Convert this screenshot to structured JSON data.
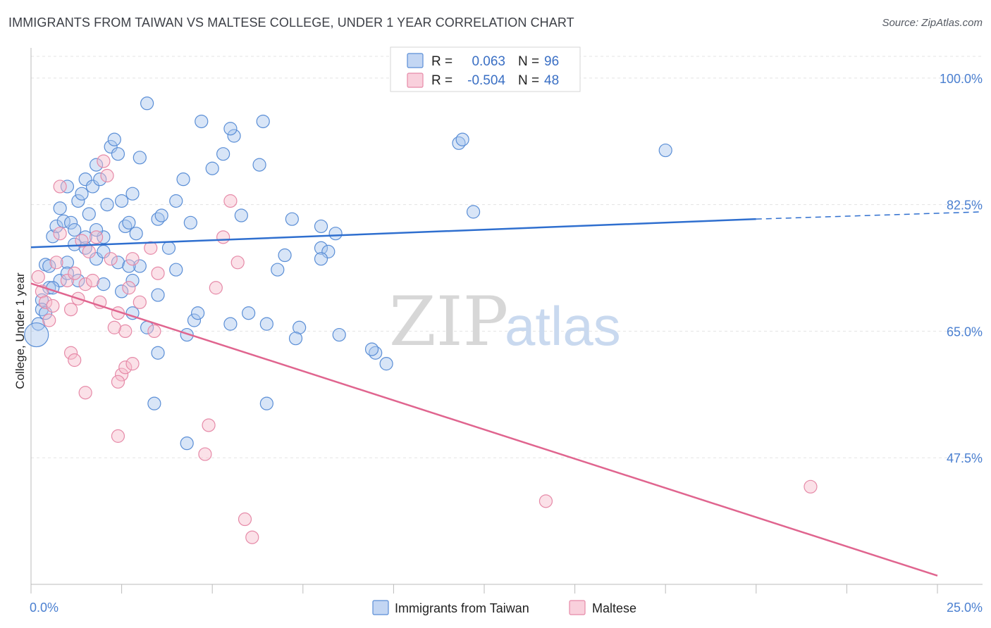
{
  "title": "IMMIGRANTS FROM TAIWAN VS MALTESE COLLEGE, UNDER 1 YEAR CORRELATION CHART",
  "source": "Source: ZipAtlas.com",
  "watermark": {
    "zip": "ZIP",
    "atlas": "atlas"
  },
  "colors": {
    "blue_fill": "#a9c5ee",
    "blue_stroke": "#5a8ed6",
    "blue_line": "#2f6fcf",
    "pink_fill": "#f6bccd",
    "pink_stroke": "#e68aa8",
    "pink_line": "#e0658f",
    "grid": "#e3e3e3",
    "tick_text": "#4a7fd0"
  },
  "legend": {
    "rows": [
      {
        "r_label": "R =",
        "r_value": "0.063",
        "n_label": "N =",
        "n_value": "96",
        "series": "blue"
      },
      {
        "r_label": "R =",
        "r_value": "-0.504",
        "n_label": "N =",
        "n_value": "48",
        "series": "pink"
      }
    ]
  },
  "chart_data": {
    "type": "scatter",
    "title": "IMMIGRANTS FROM TAIWAN VS MALTESE COLLEGE, UNDER 1 YEAR CORRELATION CHART",
    "xlabel": "",
    "ylabel": "College, Under 1 year",
    "xlim": [
      0,
      25
    ],
    "ylim": [
      30,
      103
    ],
    "x_tick_labels": [
      "0.0%",
      "25.0%"
    ],
    "y_ticks": [
      47.5,
      65.0,
      82.5,
      100.0
    ],
    "y_tick_labels": [
      "47.5%",
      "65.0%",
      "82.5%",
      "100.0%"
    ],
    "legend": [
      "Immigrants from Taiwan",
      "Maltese"
    ],
    "series": [
      {
        "name": "Immigrants from Taiwan",
        "color": "blue",
        "R": 0.063,
        "N": 96,
        "trend": {
          "x0": 0,
          "y0": 76.6,
          "x1": 20.0,
          "y1": 80.5,
          "dashed_to_x": 25,
          "dashed_to_y": 81.5
        },
        "points": [
          [
            0.3,
            69.3
          ],
          [
            0.4,
            74.2
          ],
          [
            0.5,
            74.0
          ],
          [
            0.6,
            78.1
          ],
          [
            0.7,
            79.5
          ],
          [
            0.8,
            82.0
          ],
          [
            0.9,
            80.2
          ],
          [
            1.0,
            85.0
          ],
          [
            1.1,
            80.0
          ],
          [
            1.2,
            79.0
          ],
          [
            1.3,
            83.0
          ],
          [
            1.4,
            84.0
          ],
          [
            1.5,
            86.0
          ],
          [
            1.6,
            81.2
          ],
          [
            1.7,
            85.0
          ],
          [
            1.8,
            88.0
          ],
          [
            1.9,
            86.0
          ],
          [
            2.0,
            78.0
          ],
          [
            2.1,
            82.5
          ],
          [
            2.2,
            90.5
          ],
          [
            2.3,
            91.5
          ],
          [
            2.4,
            89.5
          ],
          [
            2.5,
            83.0
          ],
          [
            2.6,
            79.5
          ],
          [
            2.7,
            80.0
          ],
          [
            2.8,
            84.0
          ],
          [
            2.9,
            78.5
          ],
          [
            3.0,
            89.0
          ],
          [
            3.2,
            96.5
          ],
          [
            3.5,
            80.5
          ],
          [
            3.6,
            81.0
          ],
          [
            3.8,
            76.5
          ],
          [
            4.0,
            83.0
          ],
          [
            4.2,
            86.0
          ],
          [
            4.4,
            80.0
          ],
          [
            4.7,
            94.0
          ],
          [
            5.0,
            87.5
          ],
          [
            5.3,
            89.5
          ],
          [
            5.6,
            92.0
          ],
          [
            5.5,
            93.0
          ],
          [
            5.8,
            81.0
          ],
          [
            6.3,
            88.0
          ],
          [
            6.4,
            94.0
          ],
          [
            7.2,
            80.5
          ],
          [
            8.0,
            79.5
          ],
          [
            8.4,
            78.5
          ],
          [
            8.0,
            76.5
          ],
          [
            8.2,
            76.0
          ],
          [
            11.8,
            91.0
          ],
          [
            11.9,
            91.5
          ],
          [
            12.2,
            81.5
          ],
          [
            17.5,
            90.0
          ],
          [
            0.5,
            71.0
          ],
          [
            0.8,
            72.0
          ],
          [
            1.0,
            74.5
          ],
          [
            1.3,
            72.0
          ],
          [
            1.5,
            76.5
          ],
          [
            1.8,
            75.0
          ],
          [
            2.0,
            71.5
          ],
          [
            2.5,
            70.5
          ],
          [
            2.8,
            72.0
          ],
          [
            3.0,
            74.0
          ],
          [
            3.5,
            70.0
          ],
          [
            4.0,
            73.5
          ],
          [
            4.5,
            66.5
          ],
          [
            4.6,
            67.5
          ],
          [
            5.5,
            66.0
          ],
          [
            6.0,
            67.5
          ],
          [
            6.5,
            66.0
          ],
          [
            6.8,
            73.5
          ],
          [
            7.0,
            75.5
          ],
          [
            7.4,
            65.5
          ],
          [
            8.0,
            75.0
          ],
          [
            8.5,
            64.5
          ],
          [
            9.5,
            62.0
          ],
          [
            9.8,
            60.5
          ],
          [
            2.8,
            67.5
          ],
          [
            3.2,
            65.5
          ],
          [
            3.5,
            62.0
          ],
          [
            4.3,
            64.5
          ],
          [
            0.2,
            66.0
          ],
          [
            0.3,
            68.0
          ],
          [
            0.4,
            67.5
          ],
          [
            0.6,
            71.0
          ],
          [
            1.0,
            73.0
          ],
          [
            1.2,
            77.0
          ],
          [
            1.5,
            78.0
          ],
          [
            1.8,
            79.0
          ],
          [
            2.0,
            76.0
          ],
          [
            2.4,
            74.5
          ],
          [
            2.7,
            74.0
          ],
          [
            3.4,
            55.0
          ],
          [
            4.3,
            49.5
          ],
          [
            6.5,
            55.0
          ],
          [
            7.3,
            64.0
          ],
          [
            9.4,
            62.5
          ]
        ]
      },
      {
        "name": "Maltese",
        "color": "pink",
        "R": -0.504,
        "N": 48,
        "trend": {
          "x0": 0,
          "y0": 71.6,
          "x1": 25,
          "y1": 31.2
        },
        "points": [
          [
            0.2,
            72.5
          ],
          [
            0.3,
            70.5
          ],
          [
            0.4,
            69.0
          ],
          [
            0.5,
            66.5
          ],
          [
            0.6,
            68.5
          ],
          [
            0.7,
            74.5
          ],
          [
            0.8,
            78.5
          ],
          [
            1.0,
            72.0
          ],
          [
            1.1,
            68.0
          ],
          [
            1.2,
            73.0
          ],
          [
            1.3,
            69.5
          ],
          [
            1.4,
            77.5
          ],
          [
            1.5,
            71.5
          ],
          [
            1.6,
            76.0
          ],
          [
            1.7,
            72.0
          ],
          [
            1.8,
            78.0
          ],
          [
            1.9,
            69.0
          ],
          [
            2.0,
            88.5
          ],
          [
            2.1,
            86.5
          ],
          [
            2.2,
            75.0
          ],
          [
            2.4,
            67.5
          ],
          [
            2.6,
            65.0
          ],
          [
            2.7,
            71.0
          ],
          [
            2.8,
            75.0
          ],
          [
            3.0,
            69.0
          ],
          [
            3.3,
            76.5
          ],
          [
            3.5,
            73.0
          ],
          [
            2.3,
            65.5
          ],
          [
            2.5,
            59.0
          ],
          [
            2.6,
            60.0
          ],
          [
            2.8,
            60.5
          ],
          [
            3.4,
            65.0
          ],
          [
            4.8,
            48.0
          ],
          [
            4.9,
            52.0
          ],
          [
            5.1,
            71.0
          ],
          [
            5.5,
            83.0
          ],
          [
            5.7,
            74.5
          ],
          [
            5.9,
            39.0
          ],
          [
            6.1,
            36.5
          ],
          [
            5.3,
            78.0
          ],
          [
            0.8,
            85.0
          ],
          [
            1.1,
            62.0
          ],
          [
            1.2,
            61.0
          ],
          [
            1.5,
            56.5
          ],
          [
            2.4,
            50.5
          ],
          [
            2.4,
            58.0
          ],
          [
            14.2,
            41.5
          ],
          [
            21.5,
            43.5
          ]
        ]
      }
    ]
  }
}
